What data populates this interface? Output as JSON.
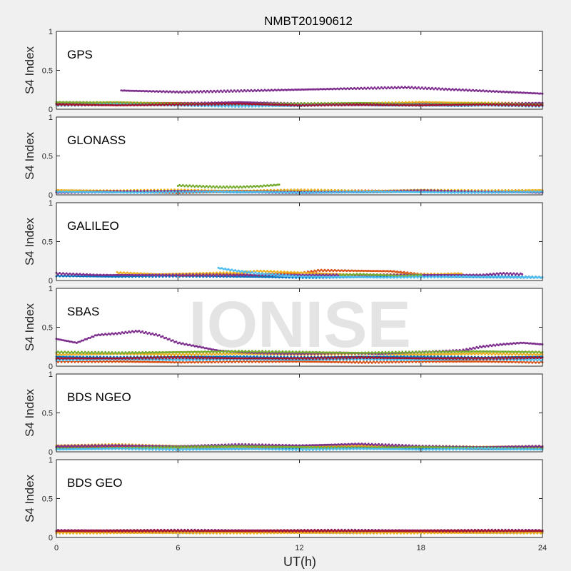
{
  "figure": {
    "title": "NMBT20190612",
    "xlabel": "UT(h)",
    "watermark": "IONISE",
    "xticks": [
      0,
      6,
      12,
      18,
      24
    ]
  },
  "chart_data": [
    {
      "type": "scatter",
      "panel_label": "GPS",
      "ylabel": "S4 Index",
      "xlim": [
        0,
        24
      ],
      "ylim": [
        0,
        1
      ],
      "yticks": [
        0,
        0.5,
        1
      ],
      "series_colors": [
        "#0072BD",
        "#D95319",
        "#EDB120",
        "#7E2F8E",
        "#77AC30",
        "#4DBEEE",
        "#A2142F"
      ],
      "series": [
        {
          "color": "#0072BD",
          "x": [
            0,
            2,
            4,
            6,
            8,
            10,
            12,
            14,
            16,
            18,
            20,
            22,
            24
          ],
          "y": [
            0.06,
            0.07,
            0.06,
            0.06,
            0.05,
            0.06,
            0.05,
            0.06,
            0.05,
            0.06,
            0.05,
            0.06,
            0.05
          ]
        },
        {
          "color": "#D95319",
          "x": [
            0,
            3,
            6,
            9,
            12,
            15,
            18,
            21,
            24
          ],
          "y": [
            0.08,
            0.07,
            0.08,
            0.07,
            0.06,
            0.07,
            0.08,
            0.07,
            0.06
          ]
        },
        {
          "color": "#EDB120",
          "x": [
            0,
            3,
            6,
            9,
            12,
            15,
            18,
            21,
            24
          ],
          "y": [
            0.06,
            0.09,
            0.07,
            0.08,
            0.06,
            0.07,
            0.09,
            0.08,
            0.07
          ]
        },
        {
          "color": "#7E2F8E",
          "x": [
            0,
            3,
            6,
            9,
            12,
            15,
            18,
            21,
            24
          ],
          "y": [
            0.07,
            0.08,
            0.07,
            0.09,
            0.07,
            0.06,
            0.07,
            0.06,
            0.08
          ]
        },
        {
          "color": "#77AC30",
          "x": [
            0,
            3,
            6,
            9,
            12,
            15,
            18,
            21,
            24
          ],
          "y": [
            0.09,
            0.08,
            0.07,
            0.06,
            0.07,
            0.08,
            0.06,
            0.07,
            0.06
          ]
        },
        {
          "color": "#4DBEEE",
          "x": [
            0,
            3,
            6,
            9,
            12,
            15,
            18,
            21,
            24
          ],
          "y": [
            0.05,
            0.06,
            0.05,
            0.04,
            0.05,
            0.06,
            0.05,
            0.05,
            0.04
          ]
        },
        {
          "color": "#A2142F",
          "x": [
            0,
            3,
            6,
            9,
            12,
            15,
            18,
            21,
            24
          ],
          "y": [
            0.06,
            0.05,
            0.06,
            0.07,
            0.05,
            0.06,
            0.05,
            0.06,
            0.05
          ]
        },
        {
          "color": "#7E2F8E",
          "x": [
            3.2,
            6.2,
            17.3,
            24
          ],
          "y": [
            0.24,
            0.22,
            0.28,
            0.2
          ]
        }
      ]
    },
    {
      "type": "scatter",
      "panel_label": "GLONASS",
      "ylabel": "S4 Index",
      "xlim": [
        0,
        24
      ],
      "ylim": [
        0,
        1
      ],
      "yticks": [
        0,
        0.5,
        1
      ],
      "series": [
        {
          "color": "#0072BD",
          "x": [
            0,
            3,
            6,
            9,
            12,
            15,
            18,
            21,
            24
          ],
          "y": [
            0.05,
            0.04,
            0.05,
            0.04,
            0.05,
            0.04,
            0.05,
            0.04,
            0.05
          ]
        },
        {
          "color": "#D95319",
          "x": [
            0,
            3,
            6,
            9,
            12,
            15,
            18,
            21,
            24
          ],
          "y": [
            0.04,
            0.05,
            0.03,
            0.05,
            0.04,
            0.05,
            0.04,
            0.05,
            0.04
          ]
        },
        {
          "color": "#EDB120",
          "x": [
            0,
            3,
            6,
            9,
            12,
            15,
            18,
            21,
            24
          ],
          "y": [
            0.06,
            0.05,
            0.06,
            0.05,
            0.06,
            0.05,
            0.06,
            0.05,
            0.06
          ]
        },
        {
          "color": "#7E2F8E",
          "x": [
            0,
            3,
            6,
            9,
            12,
            15,
            18,
            21,
            24
          ],
          "y": [
            0.03,
            0.04,
            0.05,
            0.04,
            0.03,
            0.04,
            0.05,
            0.04,
            0.03
          ]
        },
        {
          "color": "#77AC30",
          "x": [
            6,
            7,
            8,
            9,
            10,
            11
          ],
          "y": [
            0.12,
            0.11,
            0.1,
            0.1,
            0.11,
            0.13
          ]
        },
        {
          "color": "#4DBEEE",
          "x": [
            0,
            4,
            8,
            12,
            16,
            20,
            24
          ],
          "y": [
            0.04,
            0.03,
            0.04,
            0.03,
            0.04,
            0.03,
            0.04
          ]
        }
      ]
    },
    {
      "type": "scatter",
      "panel_label": "GALILEO",
      "ylabel": "S4 Index",
      "xlim": [
        0,
        24
      ],
      "ylim": [
        0,
        1
      ],
      "yticks": [
        0,
        0.5,
        1
      ],
      "series": [
        {
          "color": "#0072BD",
          "x": [
            0,
            3,
            6,
            9,
            12,
            15,
            18,
            21,
            24
          ],
          "y": [
            0.06,
            0.05,
            0.06,
            0.05,
            0.04,
            0.05,
            0.06,
            0.05,
            0.04
          ]
        },
        {
          "color": "#D95319",
          "x": [
            6,
            8,
            10,
            12,
            13,
            16.5,
            18,
            20
          ],
          "y": [
            0.07,
            0.08,
            0.07,
            0.09,
            0.13,
            0.12,
            0.08,
            0.07
          ]
        },
        {
          "color": "#EDB120",
          "x": [
            3,
            4,
            5,
            9,
            10,
            15,
            19,
            20
          ],
          "y": [
            0.1,
            0.09,
            0.08,
            0.1,
            0.12,
            0.07,
            0.08,
            0.09
          ]
        },
        {
          "color": "#7E2F8E",
          "x": [
            0,
            1,
            2,
            21,
            22,
            23
          ],
          "y": [
            0.09,
            0.08,
            0.07,
            0.07,
            0.09,
            0.08
          ]
        },
        {
          "color": "#77AC30",
          "x": [
            14,
            15,
            16,
            17,
            18
          ],
          "y": [
            0.07,
            0.08,
            0.07,
            0.06,
            0.07
          ]
        },
        {
          "color": "#4DBEEE",
          "x": [
            8,
            9,
            10,
            12,
            16,
            20,
            24
          ],
          "y": [
            0.16,
            0.12,
            0.09,
            0.05,
            0.04,
            0.05,
            0.04
          ]
        }
      ]
    },
    {
      "type": "scatter",
      "panel_label": "SBAS",
      "ylabel": "S4 Index",
      "xlim": [
        0,
        24
      ],
      "ylim": [
        0,
        1
      ],
      "yticks": [
        0,
        0.5,
        1
      ],
      "series": [
        {
          "color": "#0072BD",
          "x": [
            0,
            3,
            6,
            9,
            12,
            15,
            18,
            21,
            24
          ],
          "y": [
            0.12,
            0.11,
            0.12,
            0.12,
            0.11,
            0.12,
            0.12,
            0.11,
            0.12
          ]
        },
        {
          "color": "#D95319",
          "x": [
            0,
            3,
            6,
            9,
            12,
            15,
            18,
            21,
            24
          ],
          "y": [
            0.06,
            0.06,
            0.05,
            0.06,
            0.06,
            0.05,
            0.06,
            0.06,
            0.05
          ]
        },
        {
          "color": "#EDB120",
          "x": [
            0,
            3,
            6,
            9,
            12,
            15,
            18,
            21,
            24
          ],
          "y": [
            0.15,
            0.16,
            0.15,
            0.16,
            0.15,
            0.16,
            0.15,
            0.16,
            0.15
          ]
        },
        {
          "color": "#7E2F8E",
          "x": [
            0,
            1,
            2,
            3,
            4,
            5,
            6,
            7,
            8,
            9,
            10,
            12,
            14,
            16,
            18,
            20,
            21,
            22,
            23,
            24
          ],
          "y": [
            0.35,
            0.3,
            0.4,
            0.42,
            0.45,
            0.4,
            0.3,
            0.25,
            0.2,
            0.18,
            0.17,
            0.16,
            0.17,
            0.16,
            0.18,
            0.2,
            0.25,
            0.28,
            0.3,
            0.28
          ]
        },
        {
          "color": "#77AC30",
          "x": [
            0,
            3,
            6,
            9,
            12,
            15,
            18,
            21,
            24
          ],
          "y": [
            0.18,
            0.17,
            0.18,
            0.19,
            0.18,
            0.17,
            0.18,
            0.19,
            0.18
          ]
        },
        {
          "color": "#4DBEEE",
          "x": [
            0,
            3,
            6,
            9,
            12,
            15,
            18,
            21,
            24
          ],
          "y": [
            0.08,
            0.09,
            0.08,
            0.09,
            0.08,
            0.09,
            0.08,
            0.09,
            0.08
          ]
        },
        {
          "color": "#A2142F",
          "x": [
            0,
            3,
            6,
            9,
            12,
            15,
            18,
            21,
            24
          ],
          "y": [
            0.1,
            0.1,
            0.11,
            0.1,
            0.1,
            0.11,
            0.1,
            0.1,
            0.11
          ]
        }
      ]
    },
    {
      "type": "scatter",
      "panel_label": "BDS NGEO",
      "ylabel": "S4 Index",
      "xlim": [
        0,
        24
      ],
      "ylim": [
        0,
        1
      ],
      "yticks": [
        0,
        0.5,
        1
      ],
      "series": [
        {
          "color": "#0072BD",
          "x": [
            0,
            3,
            6,
            9,
            12,
            15,
            18,
            21,
            24
          ],
          "y": [
            0.05,
            0.06,
            0.05,
            0.04,
            0.05,
            0.06,
            0.05,
            0.04,
            0.05
          ]
        },
        {
          "color": "#D95319",
          "x": [
            0,
            3,
            6,
            9,
            12,
            15,
            18,
            21,
            24
          ],
          "y": [
            0.06,
            0.07,
            0.06,
            0.05,
            0.06,
            0.07,
            0.06,
            0.05,
            0.06
          ]
        },
        {
          "color": "#EDB120",
          "x": [
            0,
            3,
            6,
            9,
            12,
            15,
            18,
            21,
            24
          ],
          "y": [
            0.08,
            0.09,
            0.07,
            0.06,
            0.07,
            0.08,
            0.07,
            0.06,
            0.07
          ]
        },
        {
          "color": "#7E2F8E",
          "x": [
            0,
            3,
            6,
            9,
            12,
            15,
            18,
            21,
            24
          ],
          "y": [
            0.07,
            0.08,
            0.07,
            0.09,
            0.08,
            0.1,
            0.07,
            0.06,
            0.07
          ]
        },
        {
          "color": "#77AC30",
          "x": [
            0,
            3,
            6,
            9,
            12,
            15,
            18,
            21,
            24
          ],
          "y": [
            0.04,
            0.05,
            0.06,
            0.07,
            0.06,
            0.05,
            0.06,
            0.05,
            0.04
          ]
        },
        {
          "color": "#4DBEEE",
          "x": [
            0,
            3,
            6,
            9,
            12,
            15,
            18,
            21,
            24
          ],
          "y": [
            0.03,
            0.04,
            0.03,
            0.04,
            0.03,
            0.04,
            0.03,
            0.04,
            0.03
          ]
        }
      ]
    },
    {
      "type": "scatter",
      "panel_label": "BDS GEO",
      "ylabel": "S4 Index",
      "xlim": [
        0,
        24
      ],
      "ylim": [
        0,
        1
      ],
      "yticks": [
        0,
        0.5,
        1
      ],
      "series": [
        {
          "color": "#0072BD",
          "x": [
            0,
            4,
            8,
            12,
            16,
            20,
            24
          ],
          "y": [
            0.07,
            0.07,
            0.07,
            0.07,
            0.07,
            0.07,
            0.07
          ]
        },
        {
          "color": "#D95319",
          "x": [
            0,
            4,
            8,
            12,
            16,
            20,
            24
          ],
          "y": [
            0.08,
            0.08,
            0.08,
            0.08,
            0.08,
            0.08,
            0.08
          ]
        },
        {
          "color": "#EDB120",
          "x": [
            0,
            4,
            8,
            12,
            16,
            20,
            24
          ],
          "y": [
            0.06,
            0.06,
            0.06,
            0.06,
            0.06,
            0.06,
            0.06
          ]
        },
        {
          "color": "#7E2F8E",
          "x": [
            0,
            4,
            8,
            12,
            16,
            20,
            24
          ],
          "y": [
            0.09,
            0.09,
            0.09,
            0.09,
            0.09,
            0.09,
            0.09
          ]
        },
        {
          "color": "#A2142F",
          "x": [
            0,
            4,
            8,
            12,
            16,
            20,
            24
          ],
          "y": [
            0.085,
            0.085,
            0.085,
            0.085,
            0.085,
            0.085,
            0.085
          ]
        }
      ]
    }
  ]
}
